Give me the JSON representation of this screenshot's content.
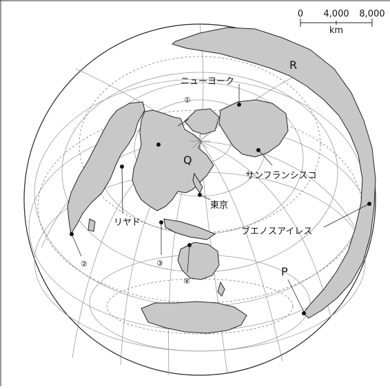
{
  "scale_bar": {
    "ticks": [
      "0",
      "4,000",
      "8,000"
    ],
    "unit": "km"
  },
  "labels": {
    "Q": "Q",
    "R": "R",
    "P": "P",
    "new_york": "ニューヨーク",
    "san_francisco": "サンフランシスコ",
    "tokyo": "東京",
    "riyadh": "リヤド",
    "buenos_aires": "ブエノスアイレス",
    "c1": "①",
    "c2": "②",
    "c3": "③",
    "c4": "④"
  },
  "colors": {
    "land": "#c8c8c8",
    "outline": "#222222",
    "grid": "#9a9a9a"
  }
}
